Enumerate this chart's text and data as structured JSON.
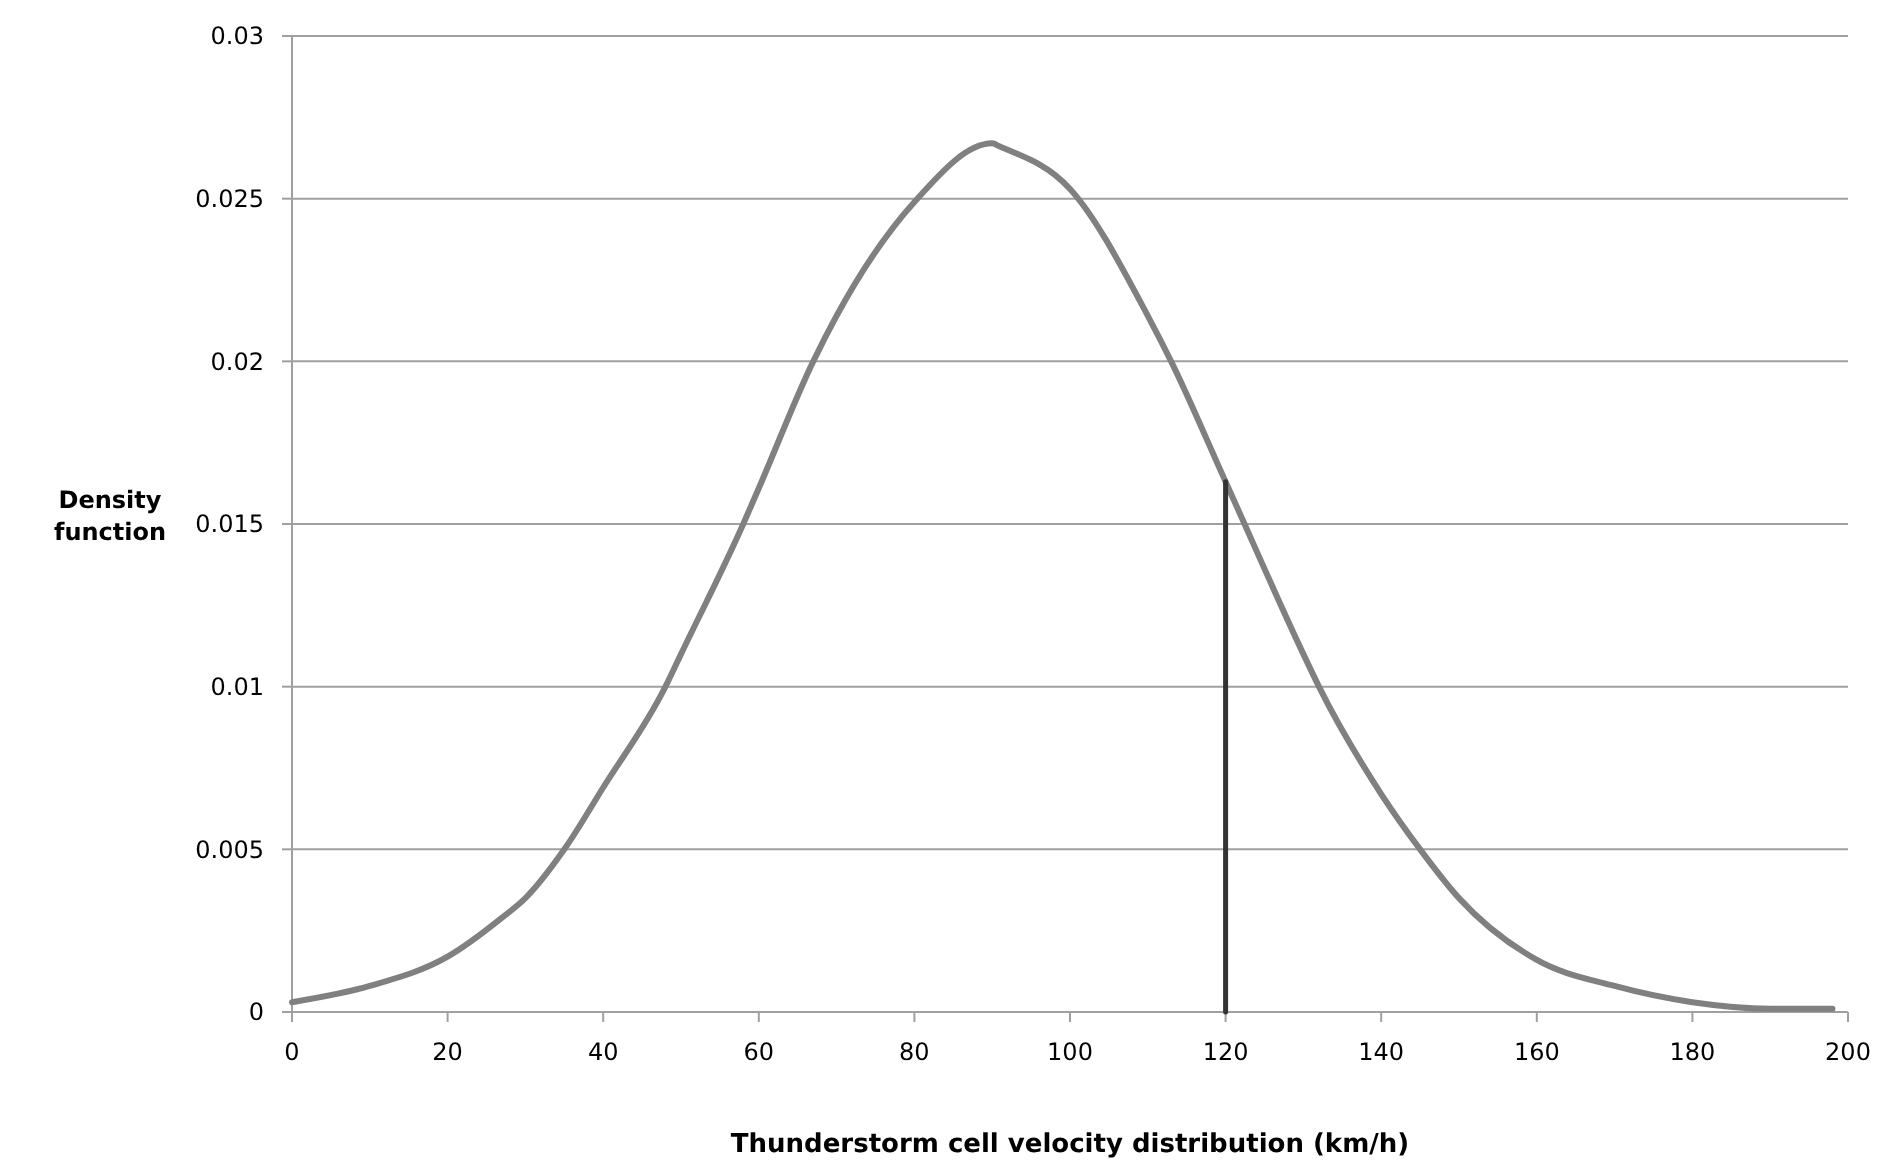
{
  "chart_data": {
    "type": "line",
    "xlabel": "Thunderstorm cell velocity distribution (km/h)",
    "ylabel": "Density function",
    "xlim": [
      0,
      200
    ],
    "xticks": [
      0,
      20,
      40,
      60,
      80,
      100,
      120,
      140,
      160,
      180,
      200
    ],
    "ylim": [
      0,
      0.03
    ],
    "yticks": [
      0,
      0.005,
      0.01,
      0.015,
      0.02,
      0.025,
      0.03
    ],
    "grid": "y",
    "line_style": "solid",
    "series": [
      {
        "color": "#808080",
        "x": [
          0,
          10,
          20,
          27,
          30,
          35,
          40,
          48,
          50,
          58,
          60,
          67,
          70,
          80,
          90,
          91,
          100,
          110,
          113,
          120,
          130,
          132,
          140,
          145,
          150,
          160,
          170,
          180,
          190,
          198
        ],
        "values": [
          0.0003,
          0.0008,
          0.0017,
          0.0029,
          0.0035,
          0.005,
          0.0069,
          0.01,
          0.011,
          0.015,
          0.0161,
          0.02,
          0.0214,
          0.0249,
          0.0267,
          0.0266,
          0.0253,
          0.0214,
          0.02,
          0.0163,
          0.011,
          0.01,
          0.0067,
          0.005,
          0.0035,
          0.0016,
          0.0008,
          0.0003,
          0.0001,
          0.0001
        ]
      },
      {
        "color": "#333333",
        "x": [
          120,
          120
        ],
        "values": [
          0,
          0.0163
        ]
      }
    ]
  }
}
